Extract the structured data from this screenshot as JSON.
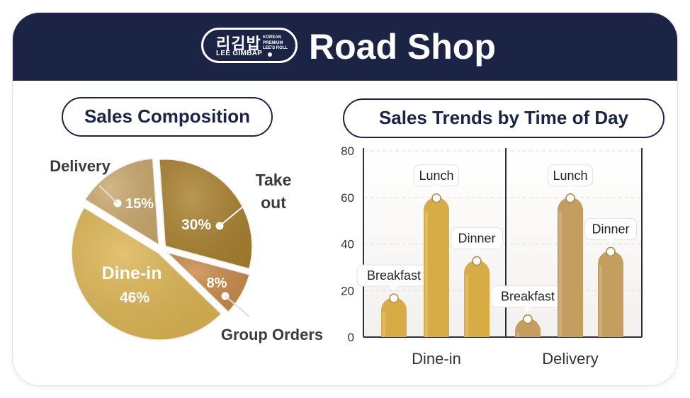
{
  "header": {
    "title": "Road Shop",
    "logo": {
      "korean": "리김밥",
      "english": "LEE GIMBAP",
      "tagline": [
        "KOREAN",
        "PREMIUM",
        "LEE'S ROLL"
      ]
    },
    "background": "#1b2444"
  },
  "pie": {
    "title": "Sales Composition",
    "slices": [
      {
        "label": "Take out",
        "label_lines": [
          "Take",
          "out"
        ],
        "value": 30,
        "value_label": "30%",
        "color": "#a9812f"
      },
      {
        "label": "Group Orders",
        "value": 8,
        "value_label": "8%",
        "color": "#c88a48"
      },
      {
        "label": "Dine-in",
        "value": 46,
        "value_label": "46%",
        "color": "#dcb553"
      },
      {
        "label": "Delivery",
        "value": 15,
        "value_label": "15%",
        "color": "#c9a86d"
      }
    ]
  },
  "chart_data": {
    "type": "bar",
    "title": "Sales Trends by Time of Day",
    "groups": [
      "Dine-in",
      "Delivery"
    ],
    "categories": [
      "Breakfast",
      "Lunch",
      "Dinner"
    ],
    "series": [
      {
        "name": "Dine-in",
        "values": [
          17,
          60,
          33
        ],
        "color": "#d8ac45"
      },
      {
        "name": "Delivery",
        "values": [
          8,
          60,
          37
        ],
        "color": "#c39e5f"
      }
    ],
    "ylim": [
      0,
      80
    ],
    "yticks": [
      0,
      20,
      40,
      60,
      80
    ]
  }
}
